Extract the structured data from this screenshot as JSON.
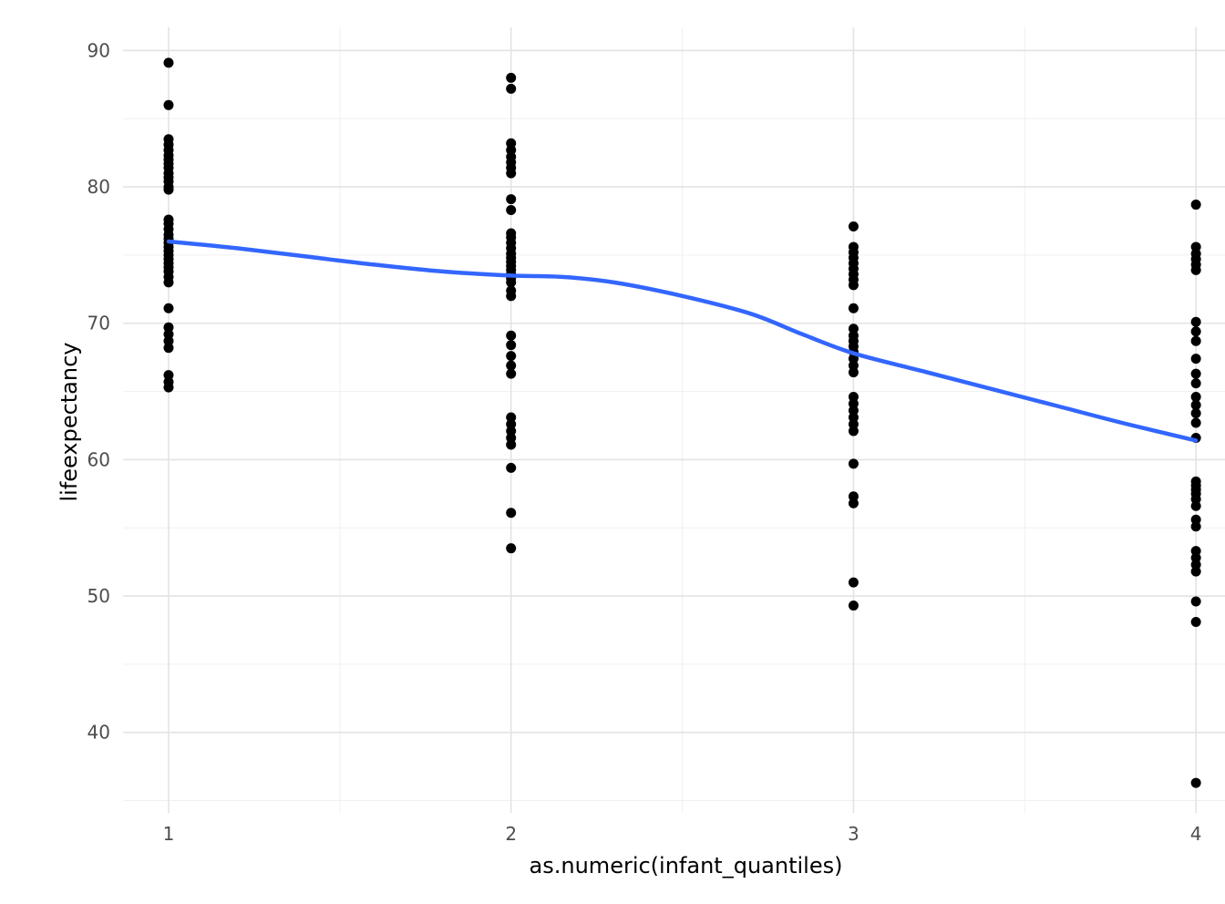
{
  "chart_data": {
    "type": "scatter",
    "title": "",
    "xlabel": "as.numeric(infant_quantiles)",
    "ylabel": "lifeexpectancy",
    "xlim": [
      0.867,
      4.154
    ],
    "ylim": [
      34.1,
      91.7
    ],
    "x_ticks": [
      1,
      2,
      3,
      4
    ],
    "y_ticks": [
      40,
      50,
      60,
      70,
      80,
      90
    ],
    "x_minor_ticks": [
      1.5,
      2.5,
      3.5
    ],
    "y_minor_ticks": [
      35,
      45,
      55,
      65,
      75,
      85
    ],
    "grid": "on",
    "legend": "none",
    "point_color": "#000000",
    "point_radius": 5.5,
    "smooth_color": "#3366FF",
    "smooth_width": 4.5,
    "grid_major_color": "#E3E3E3",
    "grid_minor_color": "#F0F0F0",
    "axis_text_color": "#4D4D4D",
    "axis_title_color": "#000000",
    "background_color": "#FFFFFF",
    "points": [
      {
        "x": 1,
        "y_values": [
          89.1,
          86.0,
          83.5,
          83.1,
          82.7,
          82.3,
          82.0,
          81.7,
          81.4,
          81.0,
          80.7,
          80.4,
          80.0,
          79.8,
          77.6,
          77.3,
          76.9,
          76.5,
          76.2,
          75.9,
          75.6,
          75.3,
          75.0,
          74.7,
          74.4,
          74.1,
          73.8,
          73.4,
          73.0,
          71.1,
          69.7,
          69.2,
          68.7,
          68.2,
          66.2,
          65.7,
          65.3
        ]
      },
      {
        "x": 2,
        "y_values": [
          88.0,
          87.2,
          83.2,
          82.7,
          82.2,
          81.8,
          81.4,
          81.0,
          79.1,
          78.3,
          76.6,
          76.3,
          75.9,
          75.5,
          75.1,
          74.8,
          74.5,
          74.2,
          73.9,
          73.6,
          73.3,
          73.0,
          72.4,
          72.0,
          69.1,
          68.4,
          67.6,
          66.9,
          66.3,
          63.1,
          62.6,
          62.1,
          61.6,
          61.1,
          59.4,
          56.1,
          53.5
        ]
      },
      {
        "x": 3,
        "y_values": [
          77.1,
          75.6,
          75.2,
          74.8,
          74.4,
          74.0,
          73.6,
          73.2,
          72.8,
          71.1,
          69.6,
          69.1,
          68.7,
          68.3,
          67.9,
          67.4,
          66.9,
          66.4,
          64.6,
          64.1,
          63.6,
          63.1,
          62.6,
          62.1,
          59.7,
          57.3,
          56.8,
          51.0,
          49.3
        ]
      },
      {
        "x": 4,
        "y_values": [
          78.7,
          75.6,
          75.1,
          74.7,
          74.3,
          73.9,
          70.1,
          69.4,
          68.7,
          67.4,
          66.3,
          65.6,
          64.6,
          64.0,
          63.4,
          62.7,
          61.6,
          58.4,
          58.1,
          57.8,
          57.5,
          57.1,
          56.6,
          55.6,
          55.1,
          53.3,
          52.8,
          52.3,
          51.8,
          49.6,
          48.1,
          36.3
        ]
      }
    ],
    "smooth_line": [
      [
        1.0,
        76.0
      ],
      [
        1.2,
        75.5
      ],
      [
        1.4,
        74.9
      ],
      [
        1.6,
        74.3
      ],
      [
        1.8,
        73.8
      ],
      [
        2.0,
        73.5
      ],
      [
        2.15,
        73.4
      ],
      [
        2.3,
        73.0
      ],
      [
        2.5,
        72.0
      ],
      [
        2.7,
        70.7
      ],
      [
        2.85,
        69.2
      ],
      [
        3.0,
        67.8
      ],
      [
        3.2,
        66.5
      ],
      [
        3.4,
        65.2
      ],
      [
        3.6,
        63.9
      ],
      [
        3.8,
        62.6
      ],
      [
        4.0,
        61.4
      ]
    ]
  }
}
